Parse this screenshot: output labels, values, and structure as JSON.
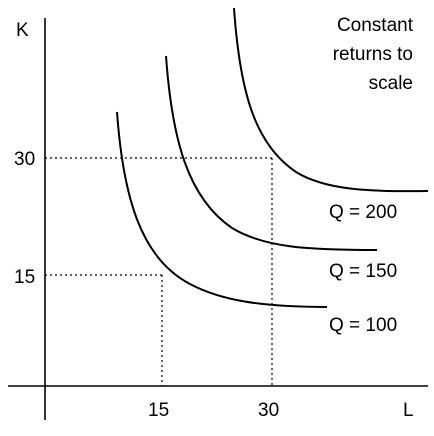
{
  "diagram": {
    "y_axis_label": "K",
    "x_axis_label": "L",
    "note_lines": [
      "Constant",
      "returns to",
      "scale"
    ],
    "y_ticks": [
      "30",
      "15"
    ],
    "x_ticks": [
      "15",
      "30"
    ],
    "isoquants": [
      {
        "label": "Q = 200"
      },
      {
        "label": "Q = 150"
      },
      {
        "label": "Q = 100"
      }
    ]
  }
}
